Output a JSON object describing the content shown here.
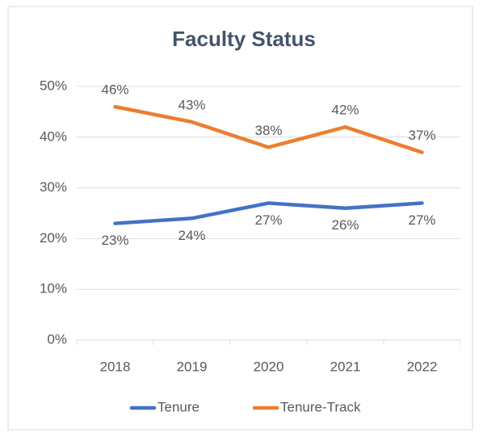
{
  "chart_data": {
    "type": "line",
    "title": "Faculty Status",
    "categories": [
      "2018",
      "2019",
      "2020",
      "2021",
      "2022"
    ],
    "series": [
      {
        "name": "Tenure",
        "color": "#4472c4",
        "values": [
          23,
          24,
          27,
          26,
          27
        ],
        "value_labels": [
          "23%",
          "24%",
          "27%",
          "26%",
          "27%"
        ]
      },
      {
        "name": "Tenure-Track",
        "color": "#ed7d31",
        "values": [
          46,
          43,
          38,
          42,
          37
        ],
        "value_labels": [
          "46%",
          "43%",
          "38%",
          "42%",
          "37%"
        ]
      }
    ],
    "ylim": [
      0,
      50
    ],
    "yticks": [
      {
        "value": 0,
        "label": "0%"
      },
      {
        "value": 10,
        "label": "10%"
      },
      {
        "value": 20,
        "label": "20%"
      },
      {
        "value": 30,
        "label": "30%"
      },
      {
        "value": 40,
        "label": "40%"
      },
      {
        "value": 50,
        "label": "50%"
      }
    ],
    "grid": true,
    "legend": "bottom"
  }
}
